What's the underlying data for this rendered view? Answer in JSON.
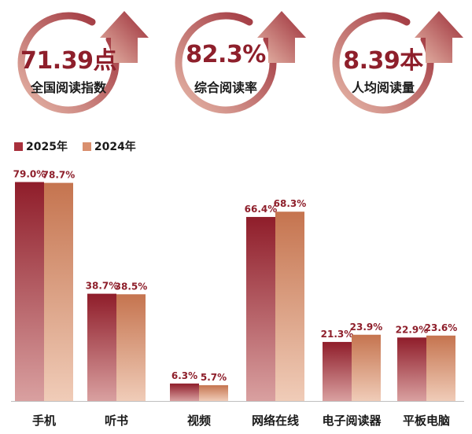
{
  "stats": [
    {
      "value": "71.39点",
      "label": "全国阅读指数"
    },
    {
      "value": "82.3%",
      "label": "综合阅读率"
    },
    {
      "value": "8.39本",
      "label": "人均阅读量"
    }
  ],
  "colors": {
    "series_2025": "#a8303c",
    "series_2024": "#d98f6e",
    "ring": "#9a2a35",
    "label": "#8e1f2b"
  },
  "chart_data": {
    "type": "bar",
    "categories": [
      "手机",
      "听书",
      "视频",
      "网络在线",
      "电子阅读器",
      "平板电脑"
    ],
    "series": [
      {
        "name": "2025年",
        "values": [
          79.0,
          38.7,
          6.3,
          66.4,
          21.3,
          22.9
        ],
        "labels": [
          "79.0%",
          "38.7%",
          "6.3%",
          "66.4%",
          "21.3%",
          "22.9%"
        ]
      },
      {
        "name": "2024年",
        "values": [
          78.7,
          38.5,
          5.7,
          68.3,
          23.9,
          23.6
        ],
        "labels": [
          "78.7%",
          "38.5%",
          "5.7%",
          "68.3%",
          "23.9%",
          "23.6%"
        ]
      }
    ],
    "ylim": [
      0,
      80
    ],
    "legend": "top-left",
    "grid": false
  }
}
